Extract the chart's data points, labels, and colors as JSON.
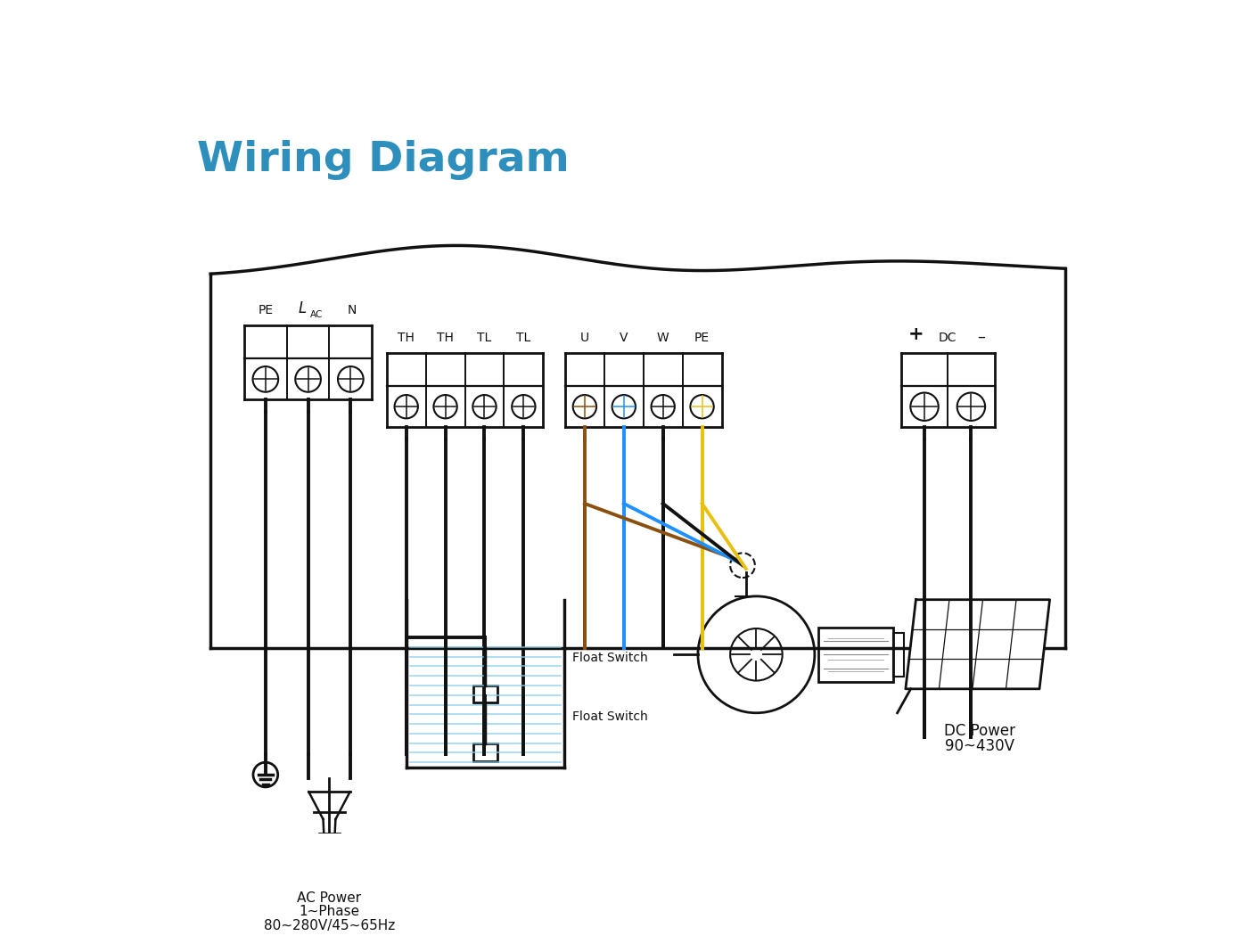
{
  "title": "Wiring Diagram",
  "title_color": "#2e8fbd",
  "title_fontsize": 34,
  "bg_color": "#ffffff",
  "line_color": "#111111",
  "wire_colors": {
    "brown": "#8B5010",
    "blue": "#1E90FF",
    "yellow": "#E8C010",
    "black": "#111111"
  },
  "labels": {
    "PE_left": "PE",
    "L_label": "L",
    "AC_label": "AC",
    "N_label": "N",
    "th_tl": [
      "TH",
      "TH",
      "TL",
      "TL"
    ],
    "uvwpe": [
      "U",
      "V",
      "W",
      "PE"
    ],
    "DC_plus": "+",
    "DC_label": "DC",
    "DC_minus": "–",
    "float_switch_top": "Float Switch",
    "float_switch_bot": "Float Switch",
    "ac_power_line1": "AC Power",
    "ac_power_line2": "1~Phase",
    "ac_power_line3": "80~280V/45~65Hz",
    "dc_power_line1": "DC Power",
    "dc_power_line2": "90~430V"
  }
}
